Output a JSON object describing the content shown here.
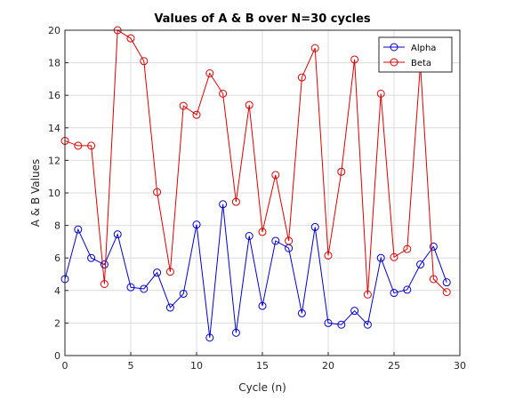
{
  "chart_data": {
    "type": "line",
    "title": "Values of A & B over N=30 cycles",
    "xlabel": "Cycle (n)",
    "ylabel": "A & B Values",
    "xlim": [
      0,
      30
    ],
    "ylim": [
      0,
      20
    ],
    "xticks": [
      0,
      5,
      10,
      15,
      20,
      25,
      30
    ],
    "yticks": [
      0,
      2,
      4,
      6,
      8,
      10,
      12,
      14,
      16,
      18,
      20
    ],
    "grid": true,
    "legend_position": "top-right",
    "x": [
      0,
      1,
      2,
      3,
      4,
      5,
      6,
      7,
      8,
      9,
      10,
      11,
      12,
      13,
      14,
      15,
      16,
      17,
      18,
      19,
      20,
      21,
      22,
      23,
      24,
      25,
      26,
      27,
      28,
      29
    ],
    "series": [
      {
        "name": "Alpha",
        "color": "#0000cc",
        "marker": "circle",
        "values": [
          4.7,
          7.75,
          6.0,
          5.6,
          7.45,
          4.2,
          4.1,
          5.1,
          2.95,
          3.8,
          8.05,
          1.1,
          9.3,
          1.4,
          7.35,
          3.05,
          7.05,
          6.6,
          2.6,
          7.9,
          2.0,
          1.9,
          2.75,
          1.9,
          6.0,
          3.85,
          4.05,
          5.6,
          6.7,
          4.5
        ]
      },
      {
        "name": "Beta",
        "color": "#dd0000",
        "marker": "circle",
        "values": [
          13.2,
          12.9,
          12.9,
          4.4,
          20.0,
          19.5,
          18.1,
          10.05,
          5.15,
          15.35,
          14.8,
          17.35,
          16.1,
          9.45,
          15.4,
          7.6,
          11.1,
          7.05,
          17.1,
          18.9,
          6.15,
          11.3,
          18.2,
          3.75,
          16.1,
          6.05,
          6.55,
          17.9,
          4.7,
          3.9
        ]
      }
    ]
  }
}
